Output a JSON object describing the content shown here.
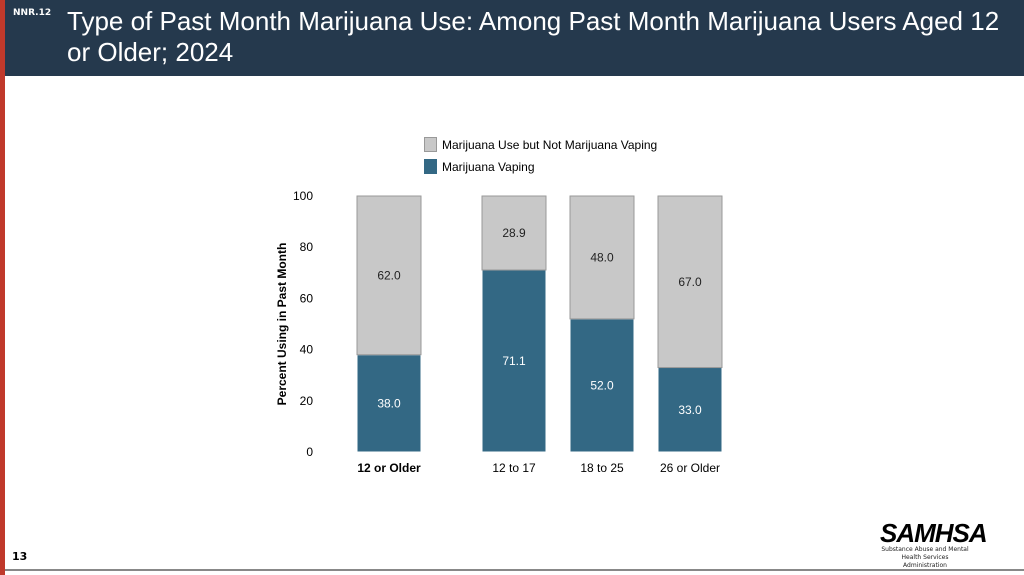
{
  "header": {
    "code": "NNR.12",
    "title": "Type of Past Month Marijuana Use: Among Past Month Marijuana Users Aged 12 or Older; 2024"
  },
  "page_number": "13",
  "logo": {
    "name": "SAMHSA",
    "subtitle": "Substance Abuse and Mental Health Services Administration"
  },
  "chart_data": {
    "type": "bar",
    "stacked": true,
    "categories": [
      "12 or Older",
      "12 to 17",
      "18 to 25",
      "26 or Older"
    ],
    "series": [
      {
        "name": "Marijuana Vaping",
        "values": [
          38.0,
          71.1,
          52.0,
          33.0
        ],
        "color": "#336884"
      },
      {
        "name": "Marijuana Use but Not Marijuana Vaping",
        "values": [
          62.0,
          28.9,
          48.0,
          67.0
        ],
        "color": "#c8c8c8"
      }
    ],
    "ylabel": "Percent Using in Past Month",
    "ylim": [
      0,
      100
    ],
    "yticks": [
      "0",
      "20",
      "40",
      "60",
      "80",
      "100"
    ],
    "legend": "top",
    "grid": false
  }
}
